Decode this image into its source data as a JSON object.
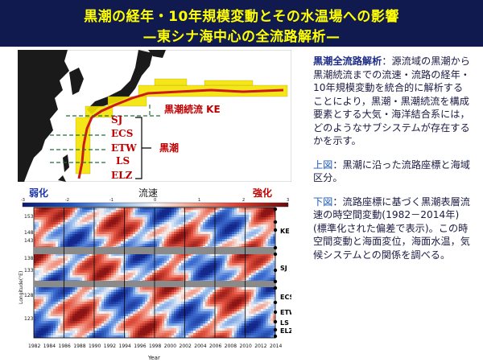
{
  "title": {
    "line1": "黒潮の経年・10年規模変動とその水温場への影響",
    "line2": "—東シナ海中心の全流路解析—"
  },
  "map": {
    "labels": [
      "SJ",
      "ECS",
      "ETW",
      "LS",
      "ELZ"
    ],
    "kuroshio_extension_label": "黒潮続流 KE",
    "kuroshio_label": "黒潮"
  },
  "colorbar": {
    "weak_label": "弱化",
    "title": "流速",
    "strong_label": "強化",
    "ticks": [
      "-3",
      "-2",
      "-1",
      "0",
      "1",
      "2",
      "3"
    ]
  },
  "heatmap": {
    "ylabel": "Longitude(°E)",
    "yticks": [
      "153",
      "148",
      "143",
      "138",
      "133",
      "128",
      "123"
    ],
    "xlabel": "Year",
    "xticks": [
      "1982",
      "1984",
      "1986",
      "1988",
      "1990",
      "1992",
      "1994",
      "1996",
      "1998",
      "2000",
      "2002",
      "2004",
      "2006",
      "2008",
      "2010",
      "2012",
      "2014"
    ],
    "regions": [
      "KE",
      "SJ",
      "ECS",
      "ETW",
      "LS",
      "ELZ"
    ]
  },
  "description": {
    "p1_heading": "黒潮全流路解析",
    "p1_body": "：源流域の黒潮から黒潮続流までの流速・流路の経年・10年規模変動を統合的に解析することにより，黒潮・黒潮続流を構成要素とする大気・海洋結合系には，どのようなサブシステムが存在するかを示す。",
    "p2_heading": "上図",
    "p2_body": "：黒潮に沿った流路座標と海域区分。",
    "p3_heading": "下図",
    "p3_body": "：流路座標に基づく黒潮表層流速の時空間変動(1982－2014年)(標準化された偏差で表示)。この時空間変動と海面変位，海面水温，気候システムとの関係を調べる。"
  },
  "colors": {
    "title_bg": "#101a4e",
    "title_text": "#ffff00",
    "kuroshio_red": "#cc1a1a",
    "heat_red": "#e8473a",
    "heat_blue": "#2f63c9"
  }
}
